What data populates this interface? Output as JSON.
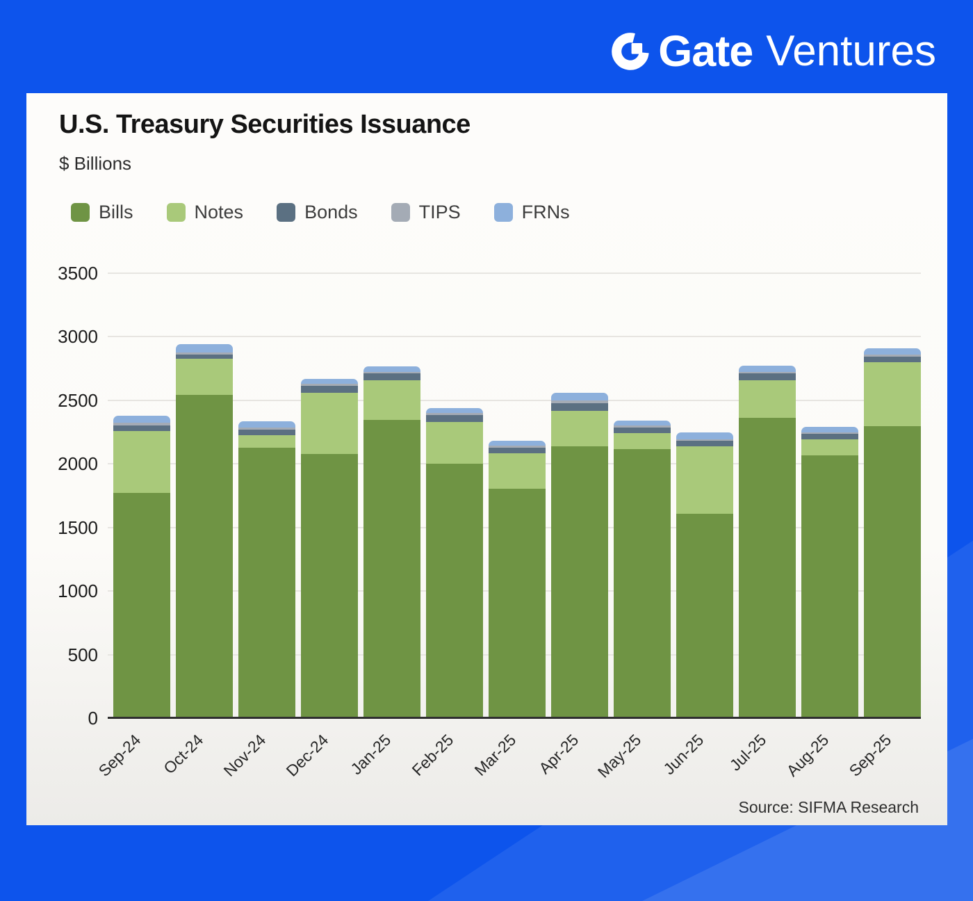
{
  "page": {
    "background_color": "#0d54ec",
    "panel_color": "#fcfbf8"
  },
  "logo": {
    "brand": "Gate",
    "suffix": "Ventures",
    "mark": "gate-circle-g-icon",
    "color": "#ffffff"
  },
  "panel": {
    "title": "U.S. Treasury Securities Issuance",
    "subtitle": "$ Billions",
    "source": "Source: SIFMA Research"
  },
  "chart_data": {
    "type": "bar",
    "stacked": true,
    "title": "U.S. Treasury Securities Issuance",
    "ylabel": "$ Billions",
    "xlabel": "",
    "ylim": [
      0,
      3500
    ],
    "ytick_step": 500,
    "yticks": [
      0,
      500,
      1000,
      1500,
      2000,
      2500,
      3000,
      3500
    ],
    "grid": true,
    "legend_position": "top-left",
    "x_label_rotation": -45,
    "categories": [
      "Sep-24",
      "Oct-24",
      "Nov-24",
      "Dec-24",
      "Jan-25",
      "Feb-25",
      "Mar-25",
      "Apr-25",
      "May-25",
      "Jun-25",
      "Jul-25",
      "Aug-25",
      "Sep-25"
    ],
    "series": [
      {
        "name": "Bills",
        "color": "#6f9444",
        "values": [
          1770,
          2545,
          2125,
          2080,
          2345,
          2000,
          1805,
          2140,
          2115,
          1610,
          2365,
          2065,
          2295
        ]
      },
      {
        "name": "Notes",
        "color": "#a9c97a",
        "values": [
          490,
          280,
          100,
          480,
          315,
          330,
          280,
          280,
          125,
          530,
          295,
          130,
          505
        ]
      },
      {
        "name": "Bonds",
        "color": "#5b7082",
        "values": [
          45,
          35,
          45,
          55,
          50,
          55,
          45,
          60,
          45,
          40,
          50,
          40,
          45
        ]
      },
      {
        "name": "TIPS",
        "color": "#a4abb5",
        "values": [
          20,
          15,
          15,
          15,
          15,
          15,
          15,
          20,
          15,
          15,
          15,
          15,
          15
        ]
      },
      {
        "name": "FRNs",
        "color": "#8db0dc",
        "values": [
          55,
          65,
          50,
          40,
          40,
          40,
          40,
          60,
          40,
          55,
          50,
          40,
          50
        ]
      }
    ],
    "source": "Source: SIFMA Research"
  }
}
